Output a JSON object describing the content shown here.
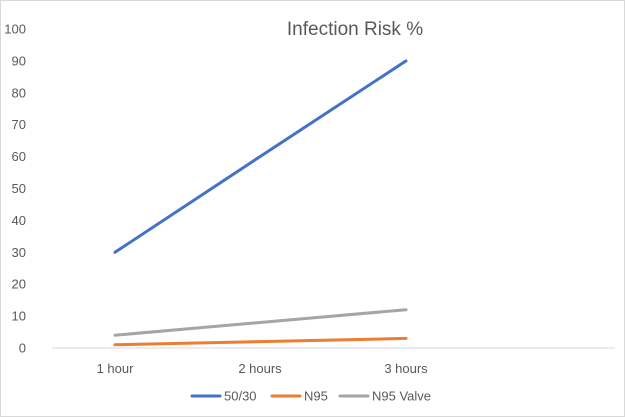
{
  "chart_data": {
    "type": "line",
    "title": "Infection Risk %",
    "categories": [
      "1 hour",
      "2 hours",
      "3 hours"
    ],
    "series": [
      {
        "name": "50/30",
        "color": "#4472c4",
        "values": [
          30,
          60,
          90
        ]
      },
      {
        "name": "N95",
        "color": "#ed7d31",
        "values": [
          1,
          2,
          3
        ]
      },
      {
        "name": "N95 Valve",
        "color": "#a5a5a5",
        "values": [
          4,
          8,
          12
        ]
      }
    ],
    "ylim": [
      0,
      100
    ],
    "yticks": [
      0,
      10,
      20,
      30,
      40,
      50,
      60,
      70,
      80,
      90,
      100
    ],
    "grid": false,
    "legend_position": "bottom"
  }
}
